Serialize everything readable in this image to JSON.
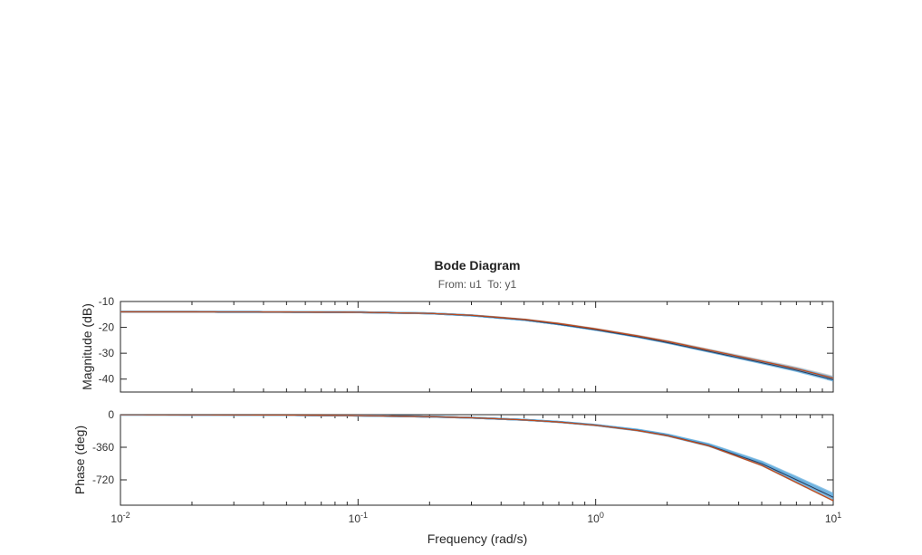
{
  "chart_data": {
    "type": "line",
    "title": "Bode Diagram",
    "subtitle": "From: u1  To: y1",
    "xlabel": "Frequency (rad/s)",
    "xscale": "log",
    "xlim": [
      0.01,
      10
    ],
    "x_tick_labels": [
      {
        "base": "10",
        "exp": "-2"
      },
      {
        "base": "10",
        "exp": "-1"
      },
      {
        "base": "10",
        "exp": "0"
      },
      {
        "base": "10",
        "exp": "1"
      }
    ],
    "x": [
      0.01,
      0.02,
      0.05,
      0.1,
      0.2,
      0.3,
      0.5,
      0.7,
      1,
      1.5,
      2,
      3,
      5,
      7,
      10
    ],
    "panels": [
      {
        "name": "magnitude",
        "ylabel": "Magnitude (dB)",
        "ylim": [
          -45,
          -10
        ],
        "yticks": [
          -10,
          -20,
          -30,
          -40
        ],
        "ytick_labels": [
          "-10",
          "-20",
          "-30",
          "-40"
        ],
        "series": [
          {
            "color": "#c04a1c",
            "values": [
              -14.0,
              -14.0,
              -14.05,
              -14.15,
              -14.6,
              -15.3,
              -16.9,
              -18.5,
              -20.6,
              -23.3,
              -25.4,
              -28.8,
              -33.1,
              -36.0,
              -39.6
            ]
          },
          {
            "color": "#5ea9dc",
            "band": true,
            "values": [
              -14.0,
              -14.0,
              -14.05,
              -14.15,
              -14.6,
              -15.4,
              -17.1,
              -18.8,
              -20.9,
              -23.6,
              -25.8,
              -29.2,
              -33.5,
              -36.4,
              -40.0
            ]
          }
        ]
      },
      {
        "name": "phase",
        "ylabel": "Phase (deg)",
        "ylim": [
          -1000,
          0
        ],
        "yticks": [
          0,
          -360,
          -720
        ],
        "ytick_labels": [
          "0",
          "-360",
          "-720"
        ],
        "series": [
          {
            "color": "#c04a1c",
            "values": [
              0,
              -1,
              -4,
              -10,
              -22,
              -34,
              -58,
              -82,
              -117,
              -175,
              -232,
              -345,
              -560,
              -750,
              -950
            ]
          },
          {
            "color": "#5ea9dc",
            "band": true,
            "values": [
              0,
              -1,
              -4,
              -10,
              -22,
              -34,
              -57,
              -80,
              -115,
              -170,
              -225,
              -335,
              -535,
              -710,
              -900
            ]
          }
        ]
      }
    ],
    "colors": {
      "model": "#c04a1c",
      "uncertainty": "#5ea9dc",
      "band_gray": "#9a9a9a",
      "nominal_dark": "#2a3a5a"
    }
  }
}
